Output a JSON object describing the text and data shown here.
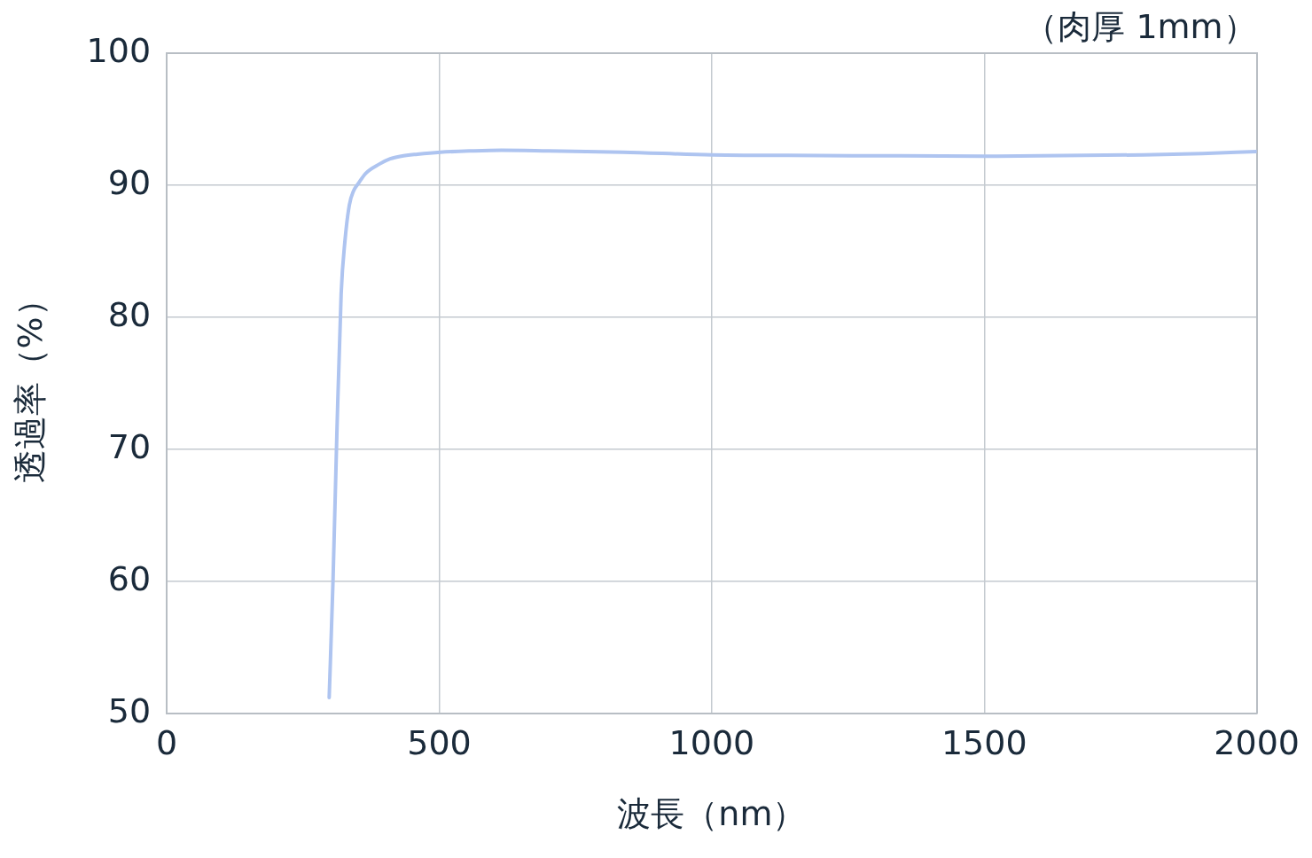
{
  "chart_data": {
    "type": "line",
    "xlabel": "波長（nm）",
    "ylabel": "透過率（%）",
    "annotations": [
      "（肉厚 1mm）"
    ],
    "x": [
      298,
      305,
      312,
      320,
      327,
      335,
      343,
      351,
      365,
      390,
      410,
      430,
      460,
      502,
      560,
      614,
      700,
      837,
      1000,
      1200,
      1500,
      1793,
      1900,
      2000
    ],
    "series": [
      {
        "color": "#aec4f0",
        "values": [
          51.2,
          60,
          71,
          81.8,
          85.8,
          88.5,
          89.6,
          90.1,
          90.9,
          91.6,
          92,
          92.2,
          92.35,
          92.5,
          92.6,
          92.65,
          92.6,
          92.5,
          92.3,
          92.25,
          92.2,
          92.3,
          92.4,
          92.55
        ]
      }
    ],
    "xlim": [
      0,
      2000
    ],
    "xticks": [
      0,
      500,
      1000,
      1500,
      2000
    ],
    "ylim": [
      50,
      100
    ],
    "yticks": [
      50,
      60,
      70,
      80,
      90,
      100
    ],
    "grid": true,
    "legend": false,
    "marker": "none",
    "line_style": "solid"
  }
}
